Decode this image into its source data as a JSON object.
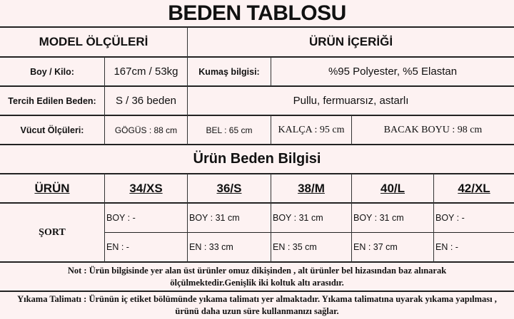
{
  "title": "BEDEN TABLOSU",
  "model": {
    "heading": "MODEL ÖLÇÜLERİ",
    "boy_kilo_label": "Boy / Kilo:",
    "boy_kilo_value": "167cm / 53kg",
    "beden_label": "Tercih Edilen Beden:",
    "beden_value": "S / 36 beden",
    "vucut_label": "Vücut Ölçüleri:",
    "gogus": "GÖGÜS : 88 cm",
    "bel": "BEL : 65 cm",
    "kalca": "KALÇA : 95 cm",
    "bacak": "BACAK BOYU : 98 cm"
  },
  "product": {
    "heading": "ÜRÜN İÇERİĞİ",
    "kumas_label": "Kumaş bilgisi:",
    "kumas_value": "%95 Polyester, %5 Elastan",
    "features": "Pullu, fermuarsız, astarlı"
  },
  "size_info": {
    "heading": "Ürün Beden Bilgisi",
    "header": [
      "ÜRÜN",
      "34/XS",
      "36/S",
      "38/M",
      "40/L",
      "42/XL"
    ],
    "product_name": "ŞORT",
    "boy": [
      "BOY : -",
      "BOY : 31 cm",
      "BOY : 31 cm",
      "BOY : 31 cm",
      "BOY : -"
    ],
    "en": [
      "EN : -",
      "EN : 33 cm",
      "EN : 35 cm",
      "EN : 37 cm",
      "EN : -"
    ]
  },
  "notes": {
    "note": "Not : Ürün bilgisinde yer alan üst ürünler omuz dikişinden , alt ürünler bel hizasından baz alınarak ölçülmektedir.Genişlik iki koltuk altı arasıdır.",
    "washing": "Yıkama Talimatı : Ürünün iç etiket bölümünde yıkama talimatı yer almaktadır. Yıkama talimatına uyarak yıkama yapılması , ürünü daha uzun süre kullanmanızı sağlar."
  }
}
